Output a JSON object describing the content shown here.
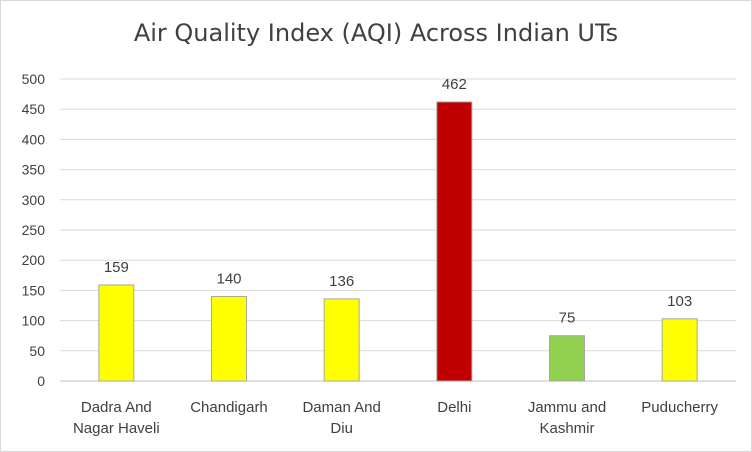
{
  "chart_data": {
    "type": "bar",
    "title": "Air Quality Index (AQI) Across Indian UTs",
    "categories": [
      [
        "Dadra And",
        "Nagar Haveli"
      ],
      [
        "Chandigarh"
      ],
      [
        "Daman And",
        "Diu"
      ],
      [
        "Delhi"
      ],
      [
        "Jammu and",
        "Kashmir"
      ],
      [
        "Puducherry"
      ]
    ],
    "values": [
      159,
      140,
      136,
      462,
      75,
      103
    ],
    "bar_colors": [
      "#ffff00",
      "#ffff00",
      "#ffff00",
      "#c00000",
      "#92d050",
      "#ffff00"
    ],
    "ylim": [
      0,
      500
    ],
    "yticks": [
      0,
      50,
      100,
      150,
      200,
      250,
      300,
      350,
      400,
      450,
      500
    ],
    "grid": true,
    "data_labels": true,
    "legend": "none"
  }
}
